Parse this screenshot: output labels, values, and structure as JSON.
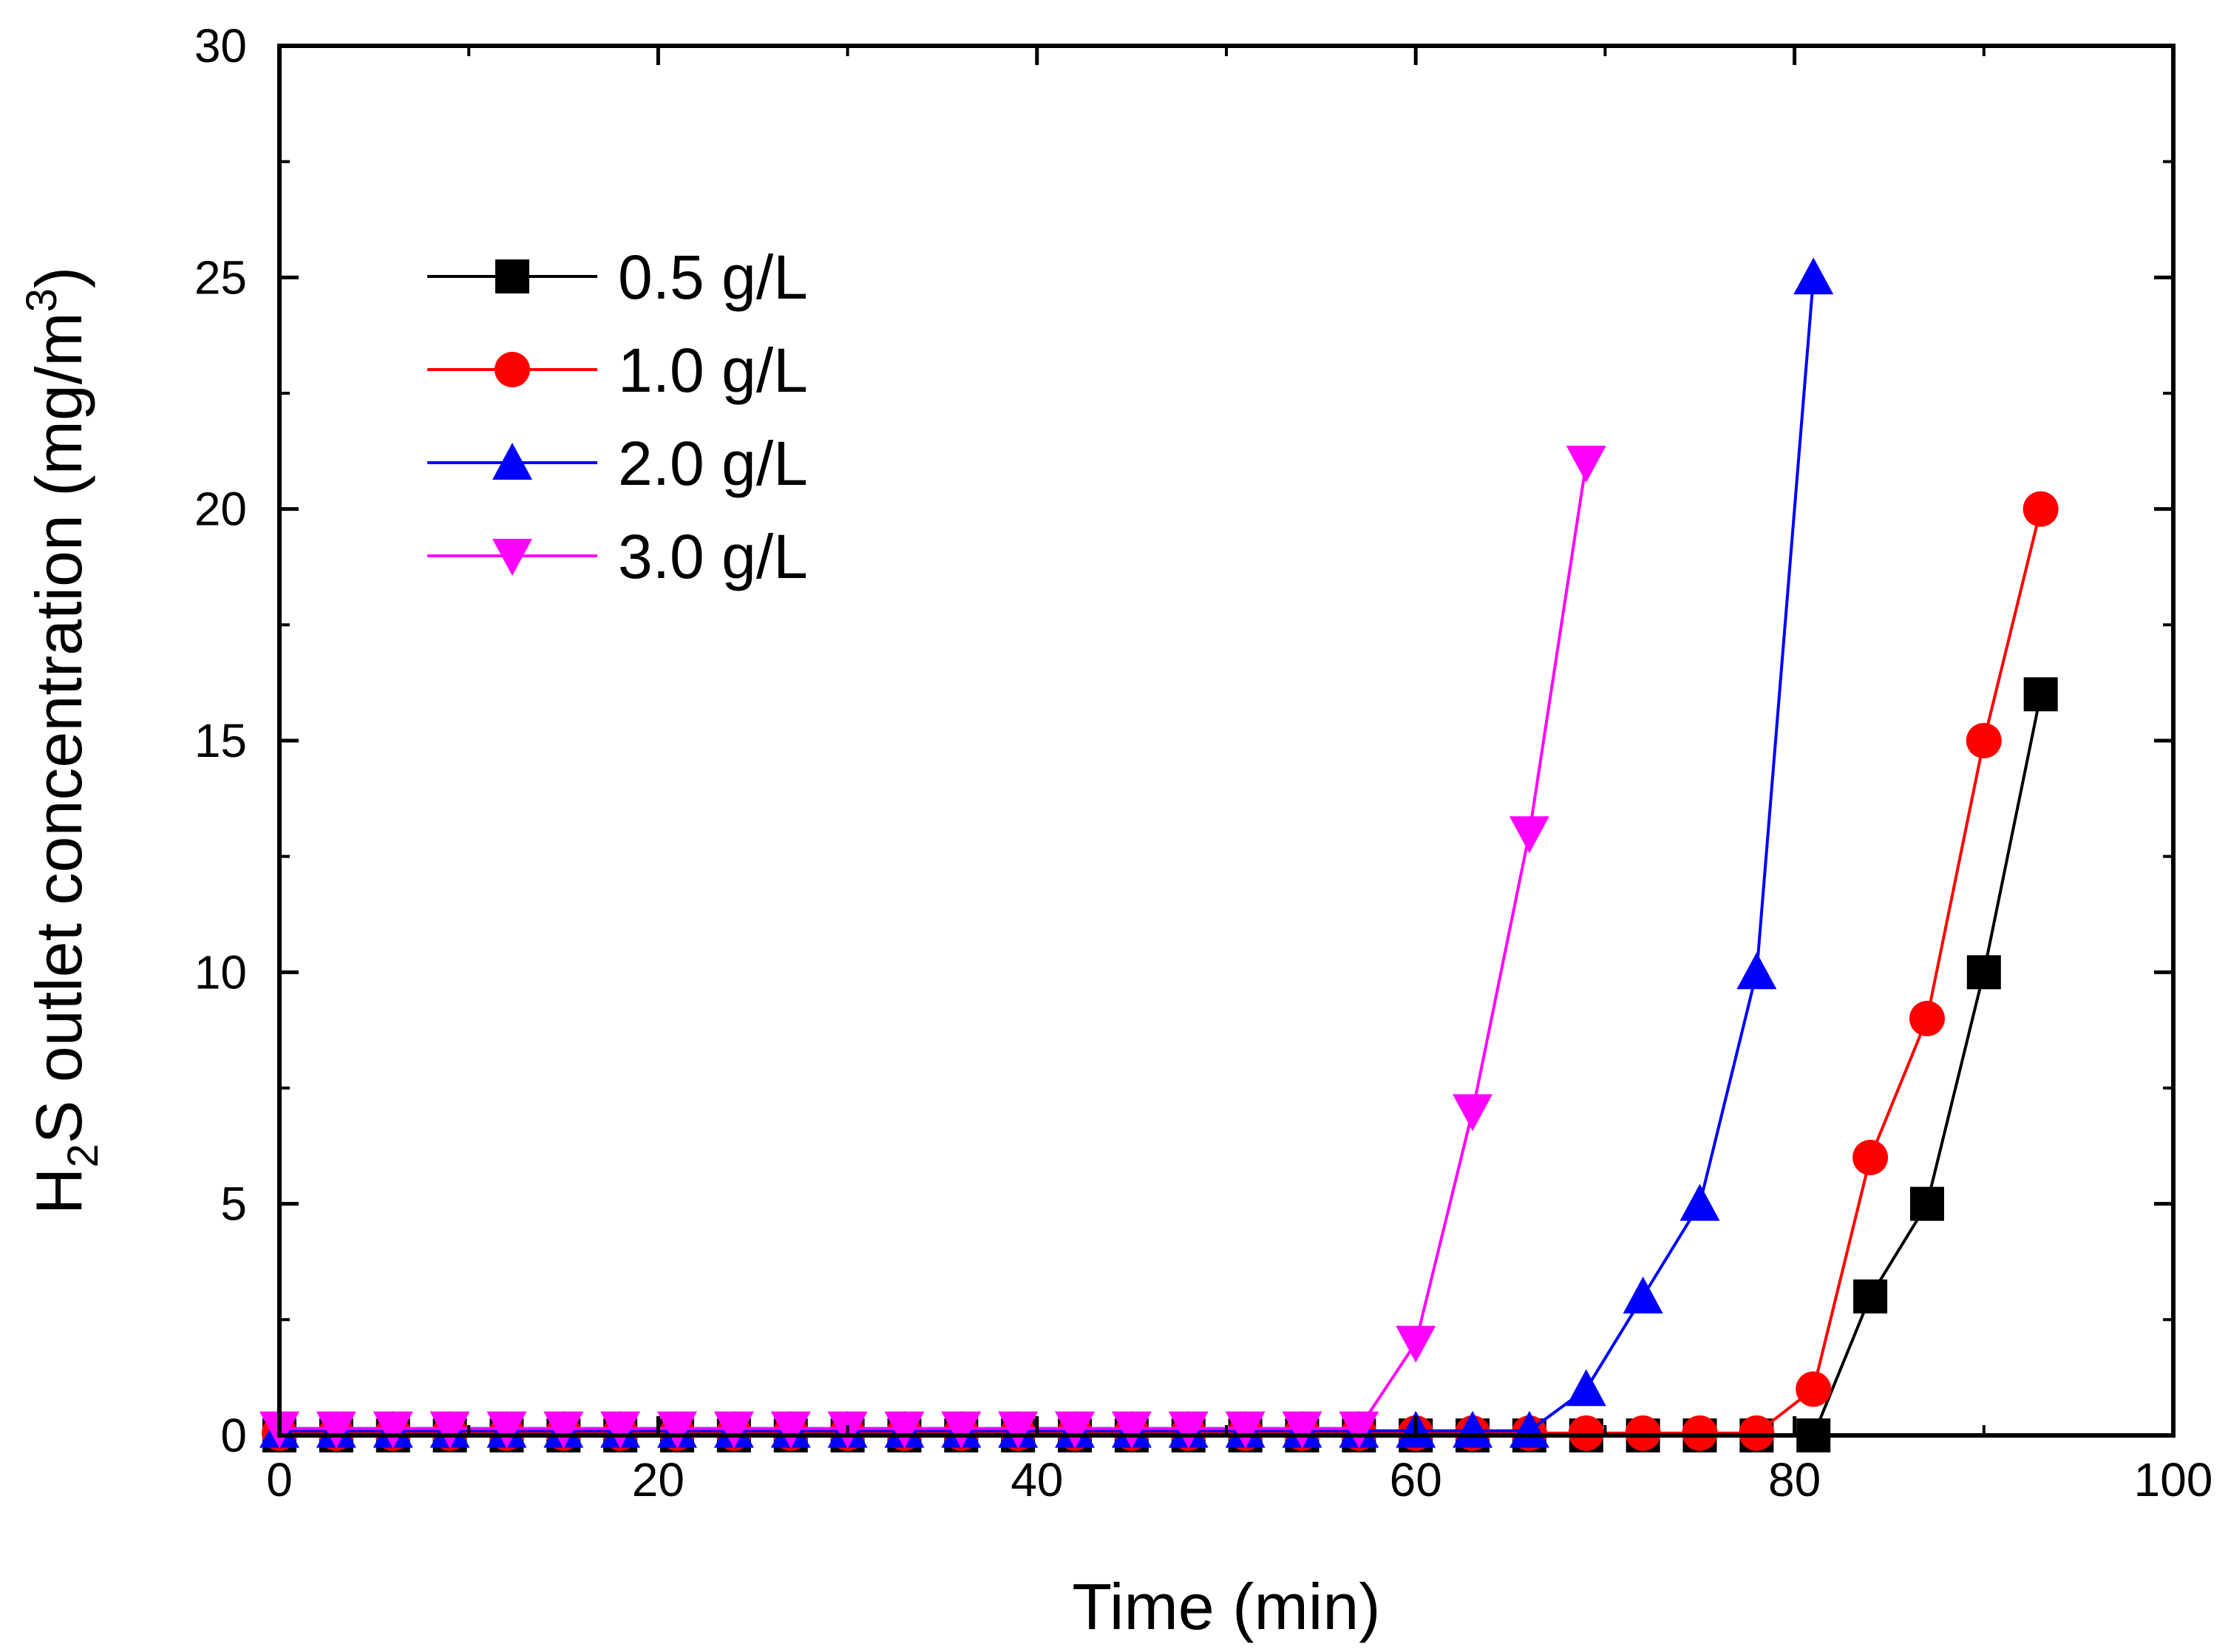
{
  "chart_data": {
    "type": "line",
    "title": "",
    "xlabel": "Time (min)",
    "ylabel": {
      "prefix": "H",
      "sub": "2",
      "mid": "S outlet concentration (mg/m",
      "sup": "3",
      "suffix": ")"
    },
    "xlim": [
      0,
      100
    ],
    "ylim": [
      0,
      30
    ],
    "xticks": [
      0,
      20,
      40,
      60,
      80,
      100
    ],
    "yticks": [
      0,
      5,
      10,
      15,
      20,
      25,
      30
    ],
    "grid": false,
    "legend_position": "top-left",
    "series": [
      {
        "name": "0.5 g/L",
        "color": "#000000",
        "marker": "square",
        "x": [
          0,
          3,
          6,
          9,
          12,
          15,
          18,
          21,
          24,
          27,
          30,
          33,
          36,
          39,
          42,
          45,
          48,
          51,
          54,
          57,
          60,
          63,
          66,
          69,
          72,
          75,
          78,
          81,
          84,
          87,
          90,
          93
        ],
        "y": [
          0,
          0,
          0,
          0,
          0,
          0,
          0,
          0,
          0,
          0,
          0,
          0,
          0,
          0,
          0,
          0,
          0,
          0,
          0,
          0,
          0,
          0,
          0,
          0,
          0,
          0,
          0,
          0,
          3,
          5,
          10,
          16
        ]
      },
      {
        "name": "1.0 g/L",
        "color": "#ff0000",
        "marker": "circle",
        "x": [
          0,
          3,
          6,
          9,
          12,
          15,
          18,
          21,
          24,
          27,
          30,
          33,
          36,
          39,
          42,
          45,
          48,
          51,
          54,
          57,
          60,
          63,
          66,
          69,
          72,
          75,
          78,
          81,
          84,
          87,
          90,
          93
        ],
        "y": [
          0.05,
          0.05,
          0.05,
          0.05,
          0.05,
          0.05,
          0.05,
          0.05,
          0.05,
          0.05,
          0.05,
          0.05,
          0.05,
          0.05,
          0.05,
          0.05,
          0.05,
          0.05,
          0.05,
          0.05,
          0.05,
          0.05,
          0.05,
          0.05,
          0.05,
          0.05,
          0.05,
          1,
          6,
          9,
          15,
          20
        ]
      },
      {
        "name": "2.0 g/L",
        "color": "#0000ff",
        "marker": "triangle-up",
        "x": [
          0,
          3,
          6,
          9,
          12,
          15,
          18,
          21,
          24,
          27,
          30,
          33,
          36,
          39,
          42,
          45,
          48,
          51,
          54,
          57,
          60,
          63,
          66,
          69,
          72,
          75,
          78,
          81
        ],
        "y": [
          0.1,
          0.1,
          0.1,
          0.1,
          0.1,
          0.1,
          0.1,
          0.1,
          0.1,
          0.1,
          0.1,
          0.1,
          0.1,
          0.1,
          0.1,
          0.1,
          0.1,
          0.1,
          0.1,
          0.1,
          0.1,
          0.1,
          0.1,
          1,
          3,
          5,
          10,
          25
        ]
      },
      {
        "name": "3.0 g/L",
        "color": "#ff00ff",
        "marker": "triangle-down",
        "x": [
          0,
          3,
          6,
          9,
          12,
          15,
          18,
          21,
          24,
          27,
          30,
          33,
          36,
          39,
          42,
          45,
          48,
          51,
          54,
          57,
          60,
          63,
          66,
          69
        ],
        "y": [
          0.15,
          0.15,
          0.15,
          0.15,
          0.15,
          0.15,
          0.15,
          0.15,
          0.15,
          0.15,
          0.15,
          0.15,
          0.15,
          0.15,
          0.15,
          0.15,
          0.15,
          0.15,
          0.15,
          0.15,
          2,
          7,
          13,
          21
        ]
      }
    ]
  }
}
